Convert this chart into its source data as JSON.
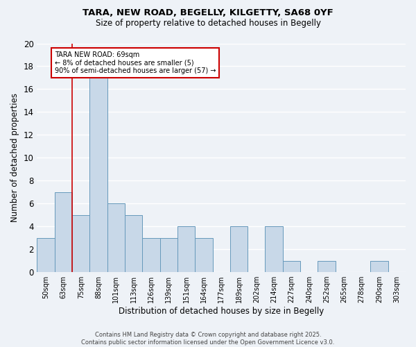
{
  "title_line1": "TARA, NEW ROAD, BEGELLY, KILGETTY, SA68 0YF",
  "title_line2": "Size of property relative to detached houses in Begelly",
  "xlabel": "Distribution of detached houses by size in Begelly",
  "ylabel": "Number of detached properties",
  "categories": [
    "50sqm",
    "63sqm",
    "75sqm",
    "88sqm",
    "101sqm",
    "113sqm",
    "126sqm",
    "139sqm",
    "151sqm",
    "164sqm",
    "177sqm",
    "189sqm",
    "202sqm",
    "214sqm",
    "227sqm",
    "240sqm",
    "252sqm",
    "265sqm",
    "278sqm",
    "290sqm",
    "303sqm"
  ],
  "values": [
    3,
    7,
    5,
    17,
    6,
    5,
    3,
    3,
    4,
    3,
    0,
    4,
    0,
    4,
    1,
    0,
    1,
    0,
    0,
    1,
    0
  ],
  "bar_color": "#c8d8e8",
  "bar_edge_color": "#6699bb",
  "red_line_x": 1.5,
  "annotation_title": "TARA NEW ROAD: 69sqm",
  "annotation_line1": "← 8% of detached houses are smaller (5)",
  "annotation_line2": "90% of semi-detached houses are larger (57) →",
  "annotation_box_color": "#ffffff",
  "annotation_box_edge": "#cc0000",
  "red_line_color": "#cc0000",
  "ylim": [
    0,
    20
  ],
  "yticks": [
    0,
    2,
    4,
    6,
    8,
    10,
    12,
    14,
    16,
    18,
    20
  ],
  "background_color": "#eef2f7",
  "grid_color": "#ffffff",
  "footer_line1": "Contains HM Land Registry data © Crown copyright and database right 2025.",
  "footer_line2": "Contains public sector information licensed under the Open Government Licence v3.0."
}
